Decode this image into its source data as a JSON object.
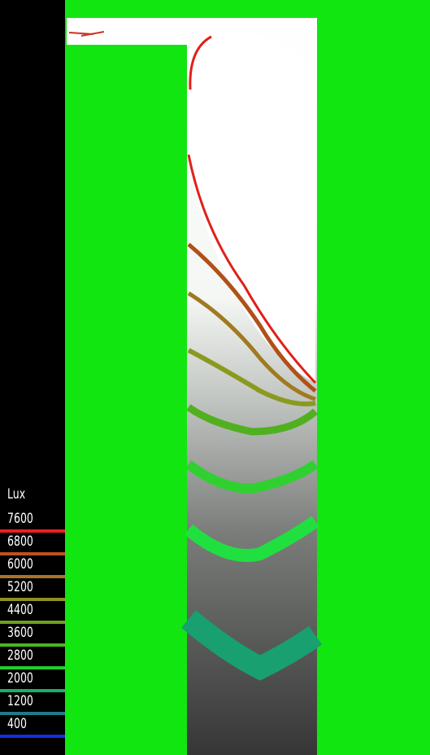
{
  "legend": {
    "title": "Lux",
    "levels": [
      {
        "label": "7600",
        "color": "#e82020"
      },
      {
        "label": "6800",
        "color": "#c05020"
      },
      {
        "label": "6000",
        "color": "#a87420"
      },
      {
        "label": "5200",
        "color": "#8e9020"
      },
      {
        "label": "4400",
        "color": "#70a020"
      },
      {
        "label": "3600",
        "color": "#48b820"
      },
      {
        "label": "2800",
        "color": "#20d028"
      },
      {
        "label": "2000",
        "color": "#18b060"
      },
      {
        "label": "1200",
        "color": "#207a8a"
      },
      {
        "label": "400",
        "color": "#1030e0"
      }
    ]
  }
}
